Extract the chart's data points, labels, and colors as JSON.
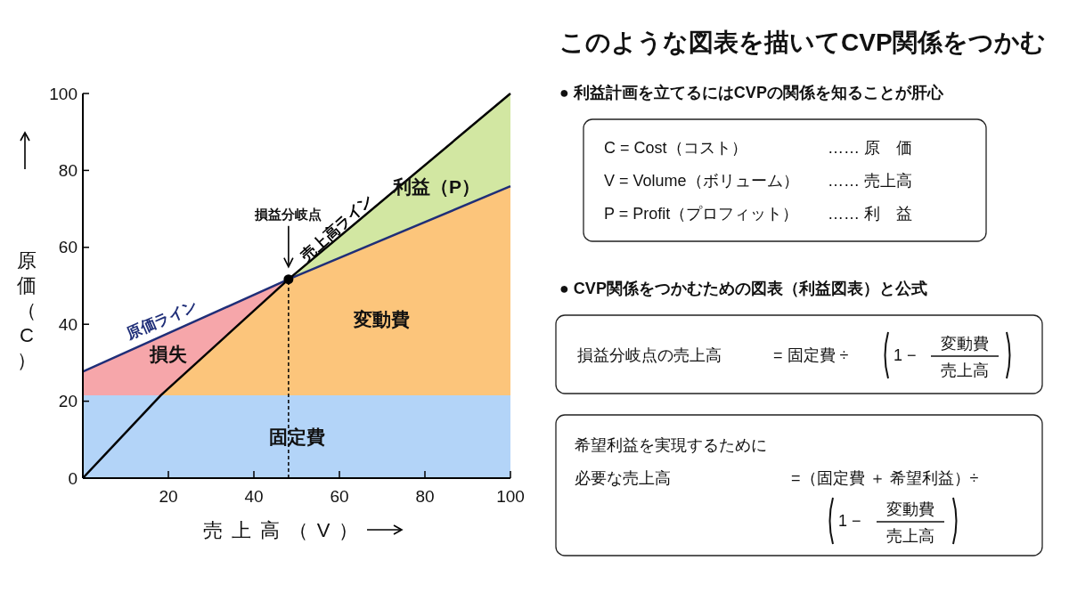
{
  "chart_data": [
    {
      "type": "area",
      "stacked": true,
      "xlabel": "売上高（V）",
      "ylabel": "原価（C）",
      "xlim": [
        0,
        100
      ],
      "ylim": [
        0,
        100
      ],
      "xticks": [
        20,
        40,
        60,
        80,
        100
      ],
      "yticks": [
        0,
        20,
        40,
        60,
        80,
        100
      ],
      "x": [
        0,
        18.2,
        48.1,
        100
      ],
      "series": [
        {
          "type": "area",
          "name": "固定費",
          "color": "#b3d4f8",
          "values": [
            21.5,
            21.5,
            21.5,
            21.5
          ]
        },
        {
          "type": "area",
          "name": "変動費",
          "color": "#fcc57b",
          "values": [
            0,
            0,
            30.2,
            54.4
          ]
        },
        {
          "type": "area",
          "name": "損失",
          "color": "#f6a6aa",
          "values": [
            6.2,
            15.3,
            0,
            null
          ]
        },
        {
          "type": "area",
          "name": "利益（P）",
          "color": "#d2e7a2",
          "values": [
            null,
            null,
            0,
            24.1
          ]
        },
        {
          "type": "line",
          "name": "原価ライン",
          "color": "#1f2e78",
          "x": [
            0,
            48.1,
            100
          ],
          "values": [
            27.7,
            51.7,
            75.9
          ]
        },
        {
          "type": "line",
          "name": "売上高ライン",
          "color": "#000000",
          "x": [
            0,
            18.2,
            48.1,
            100
          ],
          "values": [
            0,
            21.5,
            51.7,
            100
          ]
        },
        {
          "type": "line",
          "color": "#000000",
          "line_style": "dashed",
          "x": [
            48.1,
            48.1
          ],
          "values": [
            0,
            51.7
          ]
        },
        {
          "type": "scatter",
          "color": "#000000",
          "marker": "circle",
          "x": [
            48.1
          ],
          "values": [
            51.7
          ]
        }
      ],
      "annotations": [
        "損益分岐点"
      ]
    },
    {
      "type": "other",
      "title": "このような図表を描いてCVP関係をつかむ",
      "annotations": [
        "● 利益計画を立てるにはCVPの関係を知ることが肝心",
        "C = Cost（コスト）",
        "…… 原　価",
        "V = Volume（ボリューム）",
        "…… 売上高",
        "P = Profit（プロフィット）",
        "…… 利　益",
        "● CVP関係をつかむための図表（利益図表）と公式",
        "損益分岐点の売上高",
        "= 固定費 ÷",
        "1 −",
        "変動費",
        "売上高",
        "希望利益を実現するために",
        "必要な売上高",
        "=（固定費 ＋ 希望利益）÷",
        "1 −",
        "変動費",
        "売上高"
      ]
    }
  ]
}
